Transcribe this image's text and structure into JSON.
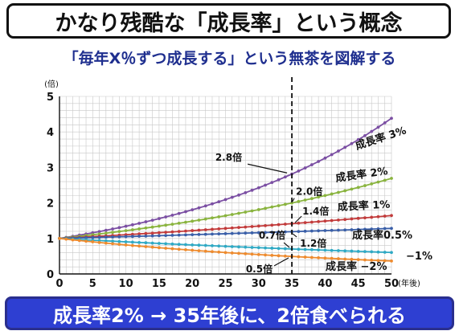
{
  "header": {
    "title": "かなり残酷な「成長率」という概念",
    "subtitle": "「毎年X％ずつ成長する」という無茶を図解する"
  },
  "footer": {
    "caption": "成長率2% → 35年後に、2倍食べられる"
  },
  "colors": {
    "subtitle": "#1f2f8f",
    "footer_bg": "#2e3fd2",
    "grid": "#c8c8c8"
  },
  "chart_data": {
    "type": "line",
    "title": "",
    "xlabel": "(年後)",
    "ylabel": "(倍)",
    "xlim": [
      0,
      50
    ],
    "ylim": [
      0,
      5
    ],
    "x_ticks": [
      "0",
      "5",
      "10",
      "15",
      "20",
      "25",
      "30",
      "35",
      "40",
      "45",
      "50"
    ],
    "y_ticks": [
      "0",
      "1",
      "2",
      "3",
      "4",
      "5"
    ],
    "grid": true,
    "legend": "labels-at-line-ends",
    "x": [
      0,
      1,
      2,
      3,
      4,
      5,
      6,
      7,
      8,
      9,
      10,
      11,
      12,
      13,
      14,
      15,
      16,
      17,
      18,
      19,
      20,
      21,
      22,
      23,
      24,
      25,
      26,
      27,
      28,
      29,
      30,
      31,
      32,
      33,
      34,
      35,
      36,
      37,
      38,
      39,
      40,
      41,
      42,
      43,
      44,
      45,
      46,
      47,
      48,
      49,
      50
    ],
    "series": [
      {
        "name": "成長率 3%",
        "color": "#7b4fa3",
        "rate": 0.03,
        "values": [
          1.0,
          1.03,
          1.061,
          1.093,
          1.126,
          1.159,
          1.194,
          1.23,
          1.267,
          1.305,
          1.344,
          1.384,
          1.426,
          1.469,
          1.513,
          1.558,
          1.605,
          1.653,
          1.702,
          1.754,
          1.806,
          1.86,
          1.916,
          1.974,
          2.033,
          2.094,
          2.157,
          2.221,
          2.288,
          2.357,
          2.427,
          2.5,
          2.575,
          2.652,
          2.732,
          2.814,
          2.898,
          2.985,
          3.075,
          3.167,
          3.262,
          3.36,
          3.461,
          3.565,
          3.671,
          3.782,
          3.895,
          4.012,
          4.132,
          4.256,
          4.384
        ]
      },
      {
        "name": "成長率 2%",
        "color": "#8ab43f",
        "rate": 0.02,
        "values": [
          1.0,
          1.02,
          1.04,
          1.061,
          1.082,
          1.104,
          1.126,
          1.149,
          1.172,
          1.195,
          1.219,
          1.243,
          1.268,
          1.294,
          1.319,
          1.346,
          1.373,
          1.4,
          1.428,
          1.457,
          1.486,
          1.516,
          1.546,
          1.577,
          1.608,
          1.641,
          1.673,
          1.707,
          1.741,
          1.776,
          1.811,
          1.848,
          1.885,
          1.922,
          1.961,
          2.0,
          2.04,
          2.081,
          2.122,
          2.165,
          2.208,
          2.252,
          2.297,
          2.343,
          2.39,
          2.438,
          2.487,
          2.536,
          2.587,
          2.639,
          2.692
        ]
      },
      {
        "name": "成長率 1%",
        "color": "#c23b3b",
        "rate": 0.01,
        "values": [
          1.0,
          1.01,
          1.02,
          1.03,
          1.041,
          1.051,
          1.062,
          1.072,
          1.083,
          1.094,
          1.105,
          1.116,
          1.127,
          1.138,
          1.149,
          1.161,
          1.173,
          1.184,
          1.196,
          1.208,
          1.22,
          1.232,
          1.245,
          1.257,
          1.27,
          1.282,
          1.295,
          1.308,
          1.321,
          1.335,
          1.348,
          1.361,
          1.375,
          1.389,
          1.403,
          1.417,
          1.431,
          1.445,
          1.46,
          1.474,
          1.489,
          1.504,
          1.519,
          1.534,
          1.549,
          1.565,
          1.58,
          1.596,
          1.612,
          1.628,
          1.645
        ]
      },
      {
        "name": "成長率0.5%",
        "color": "#3a5fa8",
        "rate": 0.005,
        "values": [
          1.0,
          1.005,
          1.01,
          1.015,
          1.02,
          1.025,
          1.03,
          1.036,
          1.041,
          1.046,
          1.051,
          1.056,
          1.062,
          1.067,
          1.072,
          1.078,
          1.083,
          1.089,
          1.094,
          1.1,
          1.105,
          1.111,
          1.116,
          1.122,
          1.127,
          1.133,
          1.139,
          1.145,
          1.15,
          1.156,
          1.161,
          1.167,
          1.173,
          1.179,
          1.185,
          1.191,
          1.197,
          1.203,
          1.209,
          1.215,
          1.221,
          1.227,
          1.233,
          1.239,
          1.245,
          1.252,
          1.258,
          1.264,
          1.27,
          1.277,
          1.283
        ]
      },
      {
        "name": "−1%",
        "color": "#2fa9c4",
        "rate": -0.01,
        "values": [
          1.0,
          0.99,
          0.98,
          0.97,
          0.961,
          0.951,
          0.941,
          0.932,
          0.923,
          0.914,
          0.904,
          0.895,
          0.886,
          0.878,
          0.869,
          0.86,
          0.851,
          0.843,
          0.835,
          0.826,
          0.818,
          0.81,
          0.802,
          0.794,
          0.786,
          0.778,
          0.77,
          0.762,
          0.755,
          0.747,
          0.74,
          0.732,
          0.725,
          0.718,
          0.711,
          0.703,
          0.696,
          0.689,
          0.683,
          0.676,
          0.669,
          0.662,
          0.656,
          0.649,
          0.643,
          0.636,
          0.63,
          0.624,
          0.617,
          0.611,
          0.605
        ]
      },
      {
        "name": "成長率 −2%",
        "color": "#ee8b2e",
        "rate": -0.02,
        "values": [
          1.0,
          0.98,
          0.96,
          0.941,
          0.922,
          0.904,
          0.886,
          0.868,
          0.851,
          0.834,
          0.817,
          0.801,
          0.785,
          0.769,
          0.754,
          0.739,
          0.724,
          0.709,
          0.695,
          0.681,
          0.668,
          0.654,
          0.641,
          0.628,
          0.616,
          0.603,
          0.591,
          0.58,
          0.568,
          0.557,
          0.545,
          0.535,
          0.524,
          0.513,
          0.503,
          0.493,
          0.483,
          0.474,
          0.464,
          0.455,
          0.446,
          0.437,
          0.428,
          0.419,
          0.411,
          0.403,
          0.395,
          0.387,
          0.379,
          0.372,
          0.364
        ]
      }
    ],
    "marker_line": {
      "x": 35,
      "style": "dashed"
    },
    "annotations": [
      {
        "text": "2.8倍",
        "x": 35,
        "y": 2.8
      },
      {
        "text": "2.0倍",
        "x": 35,
        "y": 2.0
      },
      {
        "text": "1.4倍",
        "x": 35,
        "y": 1.4
      },
      {
        "text": "1.2倍",
        "x": 35,
        "y": 1.2
      },
      {
        "text": "0.7倍",
        "x": 35,
        "y": 0.7
      },
      {
        "text": "0.5倍",
        "x": 35,
        "y": 0.5
      }
    ]
  }
}
